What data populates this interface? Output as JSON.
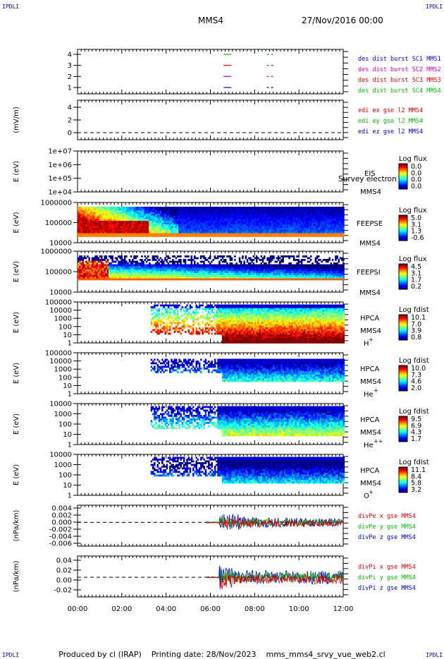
{
  "corners": {
    "tl": "IPDLI",
    "tr": "IPDLI",
    "bl": "IPDLI",
    "br": "IPDLI"
  },
  "header": {
    "spacecraft": "MMS4",
    "date": "27/Nov/2016 00:00"
  },
  "time_axis": {
    "ticks": [
      "00:00",
      "02:00",
      "04:00",
      "06:00",
      "08:00",
      "10:00",
      "12:00"
    ]
  },
  "footer": {
    "produced_by": "Produced by cl (IRAP)",
    "printing_date": "Printing date: 28/Nov/2023",
    "filename": "mms_mms4_srvy_vue_web2.cl"
  },
  "colors": {
    "mms1": "#0000cc",
    "mms2": "#cc00cc",
    "mms3": "#dd0000",
    "mms4": "#00bb00"
  },
  "panels": [
    {
      "id": "des-dist",
      "ylabel": "",
      "yticks": [
        "1",
        "2",
        "3",
        "4"
      ],
      "legend": [
        {
          "text": "des dist burst SC1 MMS1",
          "color": "#0000cc"
        },
        {
          "text": "des dist burst SC2 MMS2",
          "color": "#cc00cc"
        },
        {
          "text": "des dist burst SC3 MMS3",
          "color": "#dd0000"
        },
        {
          "text": "des dist burst SC4 MMS4",
          "color": "#00bb00"
        }
      ]
    },
    {
      "id": "edi-e",
      "ylabel": "(mV/m)",
      "yticks": [
        "0",
        "2",
        "4"
      ],
      "legend": [
        {
          "text": "edi ex gse l2 MMS4",
          "color": "#dd0000"
        },
        {
          "text": "edi ey gse l2 MMS4",
          "color": "#00bb00"
        },
        {
          "text": "edi ez gse l2 MMS4",
          "color": "#0000cc"
        }
      ]
    },
    {
      "id": "eis",
      "ylabel": "E (eV)",
      "yticks": [
        "1e+04",
        "1e+05",
        "1e+06",
        "1e+07"
      ],
      "instrument": "EIS",
      "overlay": "Survey electron to",
      "sc": "MMS4",
      "cbar": {
        "title": "Log flux",
        "ticks": [
          "0.0",
          "0.0",
          "0.0",
          "0.0"
        ]
      }
    },
    {
      "id": "feepse",
      "ylabel": "E (eV)",
      "yticks": [
        "10000",
        "100000",
        "1000000"
      ],
      "instrument": "FEEPSE",
      "sc": "MMS4",
      "cbar": {
        "title": "Log flux",
        "ticks": [
          "5.0",
          "3.1",
          "1.3",
          "-0.6"
        ]
      }
    },
    {
      "id": "feepsi",
      "ylabel": "E (eV)",
      "yticks": [
        "10000",
        "100000",
        "1000000"
      ],
      "instrument": "FEEPSI",
      "sc": "MMS4",
      "cbar": {
        "title": "Log flux",
        "ticks": [
          "4.5",
          "3.1",
          "1.7",
          "0.2"
        ]
      }
    },
    {
      "id": "hpca-h",
      "ylabel": "E (eV)",
      "yticks": [
        "1",
        "10",
        "100",
        "1000",
        "10000",
        "100000"
      ],
      "instrument": "HPCA",
      "sc": "MMS4",
      "species": "H",
      "charge": "+",
      "cbar": {
        "title": "Log fdist",
        "ticks": [
          "10.1",
          "7.0",
          "3.9",
          "0.8"
        ]
      }
    },
    {
      "id": "hpca-he1",
      "ylabel": "E (eV)",
      "yticks": [
        "1",
        "10",
        "100",
        "1000",
        "10000",
        "100000"
      ],
      "instrument": "HPCA",
      "sc": "MMS4",
      "species": "He",
      "charge": "+",
      "cbar": {
        "title": "Log fdist",
        "ticks": [
          "10.0",
          "7.3",
          "4.6",
          "2.0"
        ]
      }
    },
    {
      "id": "hpca-he2",
      "ylabel": "E (eV)",
      "yticks": [
        "1",
        "10",
        "100",
        "1000",
        "10000"
      ],
      "instrument": "HPCA",
      "sc": "MMS4",
      "species": "He",
      "charge": "++",
      "cbar": {
        "title": "Log fdist",
        "ticks": [
          "9.5",
          "6.9",
          "4.3",
          "1.7"
        ]
      }
    },
    {
      "id": "hpca-o",
      "ylabel": "E (eV)",
      "yticks": [
        "1",
        "10",
        "100",
        "1000",
        "10000"
      ],
      "instrument": "HPCA",
      "sc": "MMS4",
      "species": "O",
      "charge": "+",
      "cbar": {
        "title": "Log fdist",
        "ticks": [
          "11.1",
          "8.4",
          "5.8",
          "3.2"
        ]
      }
    },
    {
      "id": "divpe",
      "ylabel": "(nPa/km)",
      "yticks": [
        "-0.006",
        "-0.004",
        "-0.002",
        "0.000",
        "0.002",
        "0.004"
      ],
      "legend": [
        {
          "text": "divPe x gse MMS4",
          "color": "#dd0000"
        },
        {
          "text": "divPe y gse MMS4",
          "color": "#00bb00"
        },
        {
          "text": "divPe z gse MMS4",
          "color": "#0000cc"
        }
      ]
    },
    {
      "id": "divpi",
      "ylabel": "(nPa/km)",
      "yticks": [
        "-0.02",
        "0.00",
        "0.02",
        "0.04"
      ],
      "legend": [
        {
          "text": "divPi x gse MMS4",
          "color": "#dd0000"
        },
        {
          "text": "divPi y gse MMS4",
          "color": "#00bb00"
        },
        {
          "text": "divPi z gse MMS4",
          "color": "#0000cc"
        }
      ]
    }
  ],
  "chart_data": [
    {
      "type": "line",
      "title": "",
      "ylabel": "",
      "ylim": [
        0.5,
        4.5
      ],
      "x": [
        "00:00",
        "12:00"
      ],
      "series": [
        {
          "name": "des dist burst SC1 MMS1",
          "y": 1,
          "segments": [
            [
              "06:40",
              "06:50"
            ],
            [
              "08:40",
              "08:50"
            ]
          ]
        },
        {
          "name": "des dist burst SC2 MMS2",
          "y": 2,
          "segments": [
            [
              "06:40",
              "06:50"
            ],
            [
              "08:40",
              "08:50"
            ]
          ]
        },
        {
          "name": "des dist burst SC3 MMS3",
          "y": 3,
          "segments": [
            [
              "06:40",
              "06:50"
            ],
            [
              "08:40",
              "08:50"
            ]
          ]
        },
        {
          "name": "des dist burst SC4 MMS4",
          "y": 4,
          "segments": [
            [
              "06:40",
              "06:50"
            ],
            [
              "08:40",
              "08:50"
            ]
          ]
        }
      ]
    },
    {
      "type": "line",
      "ylabel": "(mV/m)",
      "ylim": [
        -1,
        5
      ],
      "reference_line": 0
    },
    {
      "type": "heatmap",
      "ylabel": "E (eV)",
      "scale": "log",
      "ylim": [
        10000,
        10000000
      ],
      "cbar_label": "Log flux"
    },
    {
      "type": "heatmap",
      "ylabel": "E (eV)",
      "scale": "log",
      "ylim": [
        10000,
        1000000
      ],
      "cbar_label": "Log flux",
      "cbar_range": [
        -0.6,
        5.0
      ]
    },
    {
      "type": "heatmap",
      "ylabel": "E (eV)",
      "scale": "log",
      "ylim": [
        10000,
        1000000
      ],
      "cbar_label": "Log flux",
      "cbar_range": [
        0.2,
        4.5
      ]
    },
    {
      "type": "heatmap",
      "ylabel": "E (eV)",
      "scale": "log",
      "ylim": [
        1,
        100000
      ],
      "cbar_label": "Log fdist",
      "cbar_range": [
        0.8,
        10.1
      ],
      "data_start": "03:20"
    },
    {
      "type": "heatmap",
      "ylabel": "E (eV)",
      "scale": "log",
      "ylim": [
        1,
        100000
      ],
      "cbar_label": "Log fdist",
      "cbar_range": [
        2.0,
        10.0
      ],
      "data_start": "03:20"
    },
    {
      "type": "heatmap",
      "ylabel": "E (eV)",
      "scale": "log",
      "ylim": [
        1,
        10000
      ],
      "cbar_label": "Log fdist",
      "cbar_range": [
        1.7,
        9.5
      ],
      "data_start": "03:20"
    },
    {
      "type": "heatmap",
      "ylabel": "E (eV)",
      "scale": "log",
      "ylim": [
        1,
        10000
      ],
      "cbar_label": "Log fdist",
      "cbar_range": [
        3.2,
        11.1
      ],
      "data_start": "03:20"
    },
    {
      "type": "line",
      "ylabel": "(nPa/km)",
      "ylim": [
        -0.006,
        0.004
      ],
      "reference_line": 0,
      "data_start": "05:50"
    },
    {
      "type": "line",
      "ylabel": "(nPa/km)",
      "ylim": [
        -0.03,
        0.04
      ],
      "reference_line": 0,
      "data_start": "05:50"
    }
  ]
}
